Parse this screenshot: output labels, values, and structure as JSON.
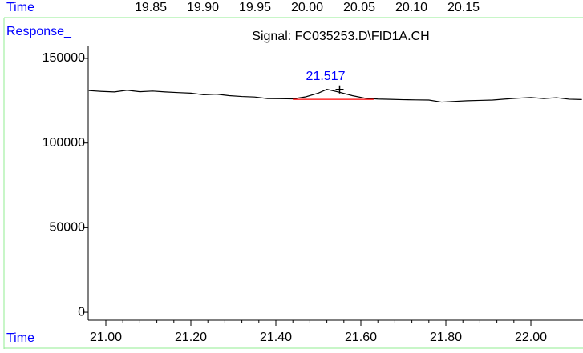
{
  "chart_data": {
    "type": "line",
    "title": "Signal: FC035253.D\\FID1A.CH",
    "x_label": "Time",
    "top_x_label": "Time",
    "y_label": "Response_",
    "xlim": [
      20.9585,
      22.1226
    ],
    "xticks": [
      {
        "value": 21.0,
        "label": "21.00"
      },
      {
        "value": 21.2,
        "label": "21.20"
      },
      {
        "value": 21.4,
        "label": "21.40"
      },
      {
        "value": 21.6,
        "label": "21.60"
      },
      {
        "value": 21.8,
        "label": "21.80"
      },
      {
        "value": 22.0,
        "label": "22.00"
      }
    ],
    "top_xlim": [
      19.79,
      20.2646
    ],
    "top_xticks": [
      {
        "value": 19.85,
        "label": "19.85"
      },
      {
        "value": 19.9,
        "label": "19.90"
      },
      {
        "value": 19.95,
        "label": "19.95"
      },
      {
        "value": 20.0,
        "label": "20.00"
      },
      {
        "value": 20.05,
        "label": "20.05"
      },
      {
        "value": 20.1,
        "label": "20.10"
      },
      {
        "value": 20.15,
        "label": "20.15"
      }
    ],
    "ylim": [
      -4700,
      157100
    ],
    "yticks": [
      0,
      50000,
      100000,
      150000
    ],
    "series": [
      {
        "color": "#000000",
        "x": [
          20.96,
          20.99,
          21.02,
          21.05,
          21.08,
          21.11,
          21.14,
          21.17,
          21.2,
          21.23,
          21.26,
          21.29,
          21.32,
          21.35,
          21.38,
          21.41,
          21.44,
          21.47,
          21.5,
          21.52,
          21.55,
          21.58,
          21.61,
          21.64,
          21.67,
          21.7,
          21.73,
          21.76,
          21.79,
          21.82,
          21.85,
          21.88,
          21.91,
          21.94,
          21.97,
          22.0,
          22.03,
          22.06,
          22.09,
          22.12
        ],
        "values": [
          131000,
          130500,
          130200,
          131200,
          130300,
          130700,
          130200,
          129800,
          129500,
          128500,
          128900,
          128000,
          127500,
          127200,
          126300,
          126200,
          126100,
          127300,
          129500,
          131700,
          130000,
          128000,
          126500,
          126000,
          125800,
          125600,
          125500,
          125400,
          124200,
          124600,
          125000,
          125200,
          125400,
          126000,
          126500,
          126900,
          126300,
          126800,
          125900,
          125700
        ]
      },
      {
        "color": "#ff0000",
        "x": [
          21.44,
          21.63
        ],
        "values": [
          125800,
          125800
        ]
      }
    ],
    "peak": {
      "label": "21.517",
      "x": 21.517,
      "marker_x": 21.55,
      "marker_value": 131700
    }
  }
}
